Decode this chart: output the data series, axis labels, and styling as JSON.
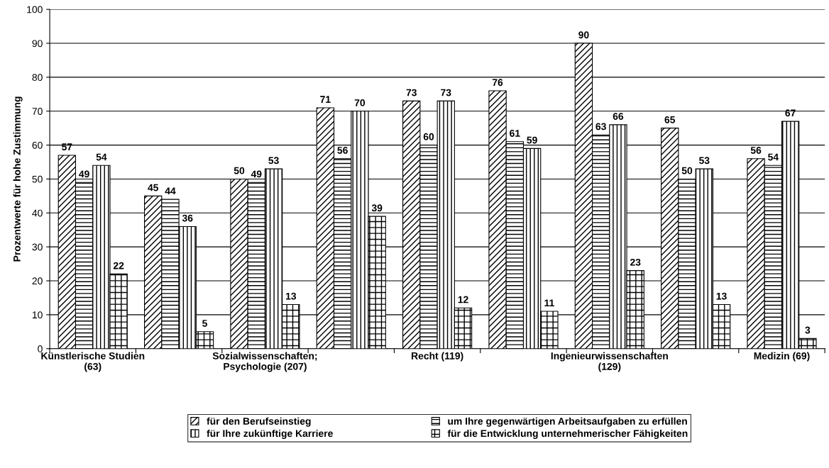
{
  "chart_data": {
    "type": "bar",
    "ylabel": "Prozentwerte für hohe Zustimmung",
    "categories": [
      "Künstlerische Studien\n(63)",
      null,
      "Sozialwissenschaften;\nPsychologie (207)",
      null,
      "Recht (119)",
      null,
      "Ingenieurwissenschaften\n(129)",
      null,
      "Medizin (69)"
    ],
    "series": [
      {
        "name": "für den Berufseinstieg",
        "color": "#000000",
        "values": [
          57,
          45,
          50,
          71,
          73,
          76,
          90,
          65,
          56
        ]
      },
      {
        "name": "um Ihre gegenwärtigen Arbeitsaufgaben zu erfüllen",
        "color": "#000000",
        "values": [
          49,
          44,
          49,
          56,
          60,
          61,
          63,
          50,
          54
        ]
      },
      {
        "name": "für Ihre zukünftige Karriere",
        "color": "#000000",
        "values": [
          54,
          36,
          53,
          70,
          73,
          59,
          66,
          53,
          67
        ]
      },
      {
        "name": "für die Entwicklung unternehmerischer Fähigkeiten",
        "color": "#000000",
        "values": [
          22,
          5,
          13,
          39,
          12,
          11,
          23,
          13,
          3
        ]
      }
    ],
    "ylim": [
      0,
      100
    ],
    "yticks": [
      0,
      10,
      20,
      30,
      40,
      50,
      60,
      70,
      80,
      90,
      100
    ],
    "grid": "y",
    "legend": "bottom",
    "data_labels": true
  }
}
